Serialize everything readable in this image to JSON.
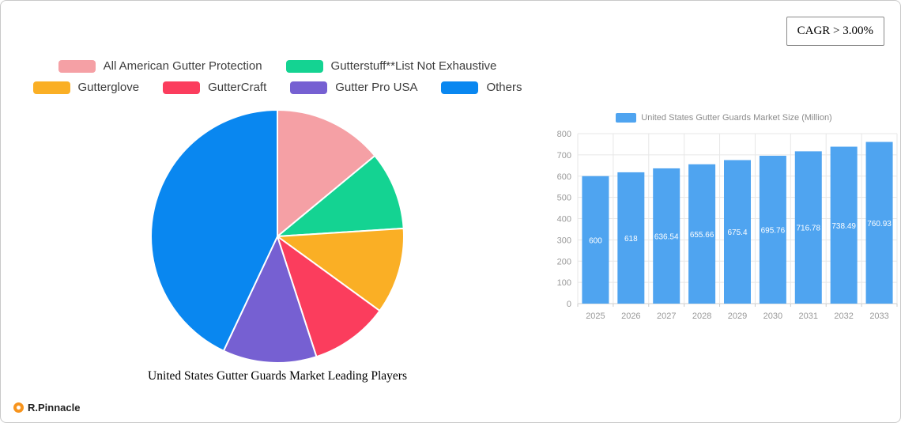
{
  "badge": {
    "cagr": "CAGR > 3.00%"
  },
  "brand": {
    "name": "R.Pinnacle"
  },
  "chart_data": [
    {
      "type": "pie",
      "title": "United States Gutter Guards Market Leading Players",
      "labels": [
        "All American Gutter Protection",
        "Gutterstuff**List Not Exhaustive",
        "Gutterglove",
        "GutterCraft",
        "Gutter Pro USA",
        "Others"
      ],
      "values": [
        14,
        10,
        11,
        10,
        12,
        43
      ],
      "colors": [
        "#F5A0A5",
        "#14D392",
        "#FAAF25",
        "#FB3D5D",
        "#7660D2",
        "#0987F0"
      ],
      "legend_rows": [
        [
          0,
          1
        ],
        [
          2,
          3,
          4,
          5
        ]
      ],
      "legend_position": "top"
    },
    {
      "type": "bar",
      "title": "United States Gutter Guards Market Size (Million)",
      "categories": [
        "2025",
        "2026",
        "2027",
        "2028",
        "2029",
        "2030",
        "2031",
        "2032",
        "2033"
      ],
      "values": [
        600,
        618,
        636.54,
        655.66,
        675.4,
        695.76,
        716.78,
        738.49,
        760.93
      ],
      "labels": [
        "600",
        "618",
        "636.54",
        "655.66",
        "675.4",
        "695.76",
        "716.78",
        "738.49",
        "760.93"
      ],
      "bar_color": "#4FA4F0",
      "ylim": [
        0,
        800
      ],
      "yticks": [
        0,
        100,
        200,
        300,
        400,
        500,
        600,
        700,
        800
      ],
      "grid": true,
      "legend_position": "top"
    }
  ]
}
